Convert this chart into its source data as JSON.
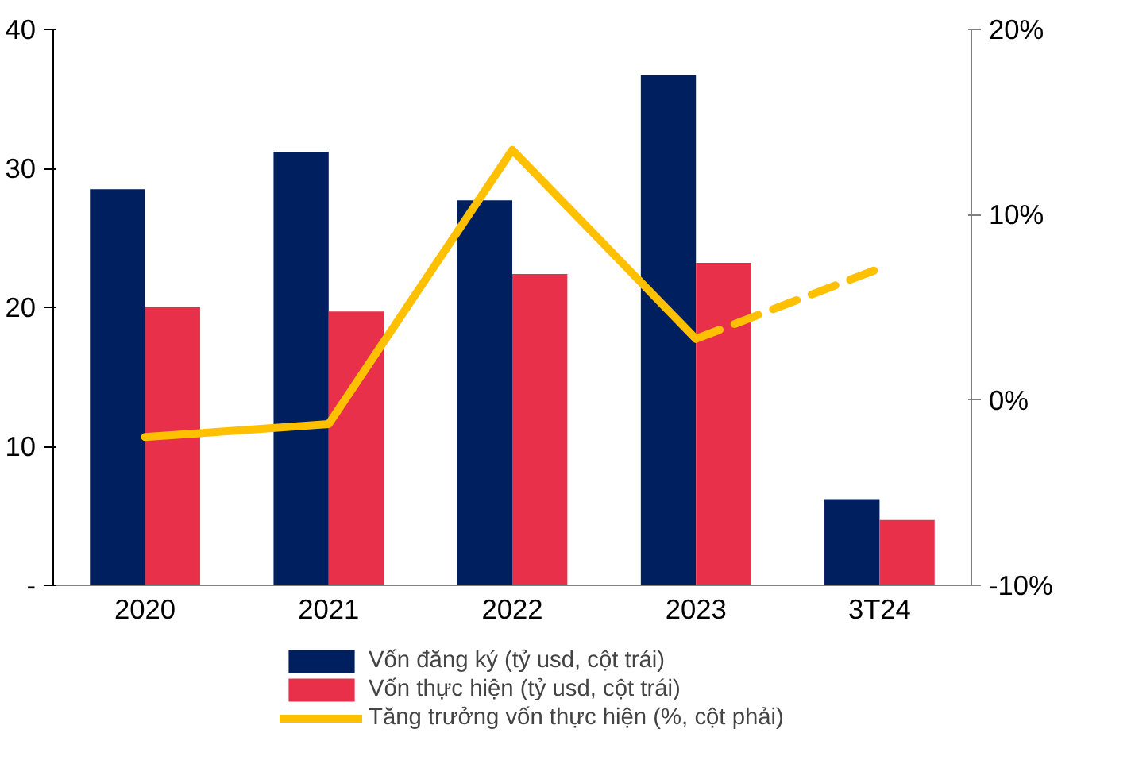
{
  "chart_data": {
    "type": "bar",
    "categories": [
      "2020",
      "2021",
      "2022",
      "2023",
      "3T24"
    ],
    "series": [
      {
        "name": "Vốn đăng ký (tỷ usd, cột trái)",
        "color": "#001f5f",
        "values": [
          28.5,
          31.2,
          27.7,
          36.7,
          6.2
        ]
      },
      {
        "name": "Vốn thực hiện (tỷ usd, cột trái)",
        "color": "#e8304b",
        "values": [
          20.0,
          19.7,
          22.4,
          23.2,
          4.7
        ]
      },
      {
        "name": "Tăng trưởng vốn thực hiện (%, cột phải)",
        "type": "line",
        "axis": "y2",
        "color": "#ffc000",
        "line_style": "solid",
        "values": [
          -2.0,
          -1.3,
          13.5,
          3.3,
          null
        ]
      },
      {
        "type": "line",
        "axis": "y2",
        "color": "#ffc000",
        "line_style": "dashed",
        "values": [
          null,
          null,
          null,
          3.3,
          7.1
        ]
      }
    ],
    "ylim": [
      0,
      40
    ],
    "yticks": [
      {
        "value": 0,
        "label": "-"
      },
      10,
      20,
      30,
      40
    ],
    "y2lim": [
      -10,
      20
    ],
    "y2ticks": [
      {
        "value": -10,
        "label": "-10%"
      },
      {
        "value": 0,
        "label": "0%"
      },
      {
        "value": 10,
        "label": "10%"
      },
      {
        "value": 20,
        "label": "20%"
      }
    ],
    "grid": false,
    "legend": "bottom"
  }
}
